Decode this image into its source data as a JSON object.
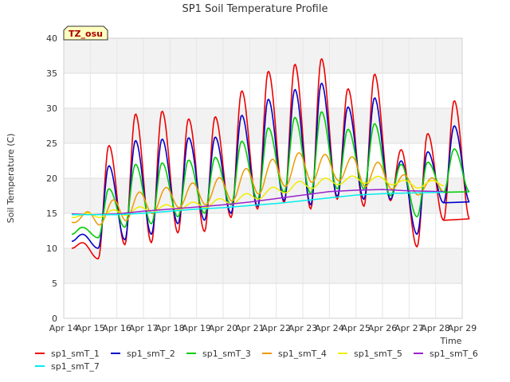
{
  "chart_data": {
    "type": "line",
    "title": "SP1 Soil Temperature Profile",
    "xlabel": "Time",
    "ylabel": "Soil Temperature (C)",
    "ylim": [
      0,
      40
    ],
    "yticks": [
      0,
      5,
      10,
      15,
      20,
      25,
      30,
      35,
      40
    ],
    "xlim": [
      14,
      29
    ],
    "xticks": [
      {
        "v": 14,
        "label": "Apr 14"
      },
      {
        "v": 15,
        "label": "Apr 15"
      },
      {
        "v": 16,
        "label": "Apr 16"
      },
      {
        "v": 17,
        "label": "Apr 17"
      },
      {
        "v": 18,
        "label": "Apr 18"
      },
      {
        "v": 19,
        "label": "Apr 19"
      },
      {
        "v": 20,
        "label": "Apr 20"
      },
      {
        "v": 21,
        "label": "Apr 21"
      },
      {
        "v": 22,
        "label": "Apr 22"
      },
      {
        "v": 23,
        "label": "Apr 23"
      },
      {
        "v": 24,
        "label": "Apr 24"
      },
      {
        "v": 25,
        "label": "Apr 25"
      },
      {
        "v": 26,
        "label": "Apr 26"
      },
      {
        "v": 27,
        "label": "Apr 27"
      },
      {
        "v": 28,
        "label": "Apr 28"
      },
      {
        "v": 29,
        "label": "Apr 29"
      }
    ],
    "grid": true,
    "annotation": "TZ_osu",
    "legend_position": "bottom",
    "series": [
      {
        "name": "sp1_smT_1",
        "color": "#ee0000",
        "sw": 1.6,
        "kind": "daily",
        "x0": 14.3,
        "x1": 28.3,
        "mins": [
          10.0,
          8.5,
          10.5,
          10.8,
          12.2,
          12.4,
          14.4,
          15.6,
          16.5,
          15.6,
          17.0,
          16.0,
          16.8,
          10.2,
          14.0
        ],
        "maxs": [
          10.8,
          24.7,
          29.2,
          29.6,
          28.5,
          28.8,
          32.5,
          35.3,
          36.3,
          37.1,
          32.8,
          34.9,
          24.1,
          26.4,
          31.1
        ]
      },
      {
        "name": "sp1_smT_2",
        "color": "#0000cc",
        "sw": 1.6,
        "kind": "daily",
        "x0": 14.3,
        "x1": 28.3,
        "mins": [
          11.0,
          10.0,
          11.2,
          12.0,
          13.5,
          14.0,
          15.0,
          16.0,
          16.8,
          16.2,
          17.4,
          17.0,
          17.0,
          12.0,
          16.5
        ],
        "maxs": [
          12.0,
          21.8,
          25.4,
          25.6,
          25.8,
          25.9,
          29.0,
          31.3,
          32.7,
          33.6,
          30.2,
          31.5,
          22.5,
          23.8,
          27.5
        ]
      },
      {
        "name": "sp1_smT_3",
        "color": "#00cc00",
        "sw": 1.6,
        "kind": "daily",
        "x0": 14.3,
        "x1": 28.3,
        "mins": [
          12.0,
          11.5,
          13.0,
          13.5,
          14.5,
          15.0,
          16.2,
          17.0,
          18.0,
          17.8,
          18.5,
          18.5,
          17.5,
          14.5,
          18.0
        ],
        "maxs": [
          13.0,
          18.5,
          22.0,
          22.2,
          22.6,
          23.0,
          25.3,
          27.2,
          28.7,
          29.5,
          27.0,
          27.8,
          22.0,
          22.3,
          24.2
        ]
      },
      {
        "name": "sp1_smT_4",
        "color": "#ee9900",
        "sw": 1.5,
        "kind": "wave",
        "x0": 14.3,
        "x1": 28.3,
        "mean": [
          14.0,
          14.6,
          15.8,
          16.6,
          17.4,
          17.9,
          18.6,
          19.9,
          21.0,
          21.7,
          21.3,
          21.0,
          20.0,
          18.6,
          19.2
        ],
        "amp": [
          0.3,
          1.3,
          1.9,
          1.7,
          1.6,
          1.7,
          1.9,
          2.2,
          2.2,
          2.3,
          1.6,
          2.2,
          1.5,
          1.0,
          1.2
        ]
      },
      {
        "name": "sp1_smT_5",
        "color": "#eeee00",
        "sw": 1.5,
        "kind": "wave",
        "x0": 14.3,
        "x1": 28.3,
        "mean": [
          14.6,
          14.8,
          15.2,
          15.6,
          15.9,
          16.3,
          16.8,
          17.6,
          18.5,
          19.2,
          19.6,
          19.9,
          19.6,
          19.0,
          19.4
        ],
        "amp": [
          0.2,
          0.4,
          0.5,
          0.5,
          0.4,
          0.5,
          0.5,
          0.6,
          0.6,
          0.7,
          0.5,
          0.6,
          0.5,
          0.4,
          0.5
        ]
      },
      {
        "name": "sp1_smT_6",
        "color": "#9922cc",
        "sw": 1.5,
        "kind": "smooth",
        "x0": 14.3,
        "x1": 28.3,
        "pts": [
          [
            14.3,
            14.9
          ],
          [
            15.0,
            14.8
          ],
          [
            16.0,
            14.9
          ],
          [
            17.0,
            15.3
          ],
          [
            18.0,
            15.6
          ],
          [
            19.0,
            15.9
          ],
          [
            20.0,
            16.2
          ],
          [
            21.0,
            16.6
          ],
          [
            22.0,
            17.1
          ],
          [
            23.0,
            17.6
          ],
          [
            24.0,
            18.1
          ],
          [
            25.0,
            18.3
          ],
          [
            26.0,
            18.4
          ],
          [
            27.0,
            18.2
          ],
          [
            28.3,
            18.1
          ]
        ]
      },
      {
        "name": "sp1_smT_7",
        "color": "#00eeee",
        "sw": 1.5,
        "kind": "smooth",
        "x0": 14.3,
        "x1": 28.3,
        "pts": [
          [
            14.3,
            14.8
          ],
          [
            15.0,
            14.8
          ],
          [
            16.0,
            14.8
          ],
          [
            17.0,
            15.0
          ],
          [
            18.0,
            15.3
          ],
          [
            19.0,
            15.6
          ],
          [
            20.0,
            15.8
          ],
          [
            21.0,
            16.1
          ],
          [
            22.0,
            16.4
          ],
          [
            23.0,
            16.8
          ],
          [
            24.0,
            17.2
          ],
          [
            25.0,
            17.6
          ],
          [
            26.0,
            17.8
          ],
          [
            27.0,
            17.9
          ],
          [
            28.3,
            18.0
          ]
        ]
      }
    ]
  }
}
